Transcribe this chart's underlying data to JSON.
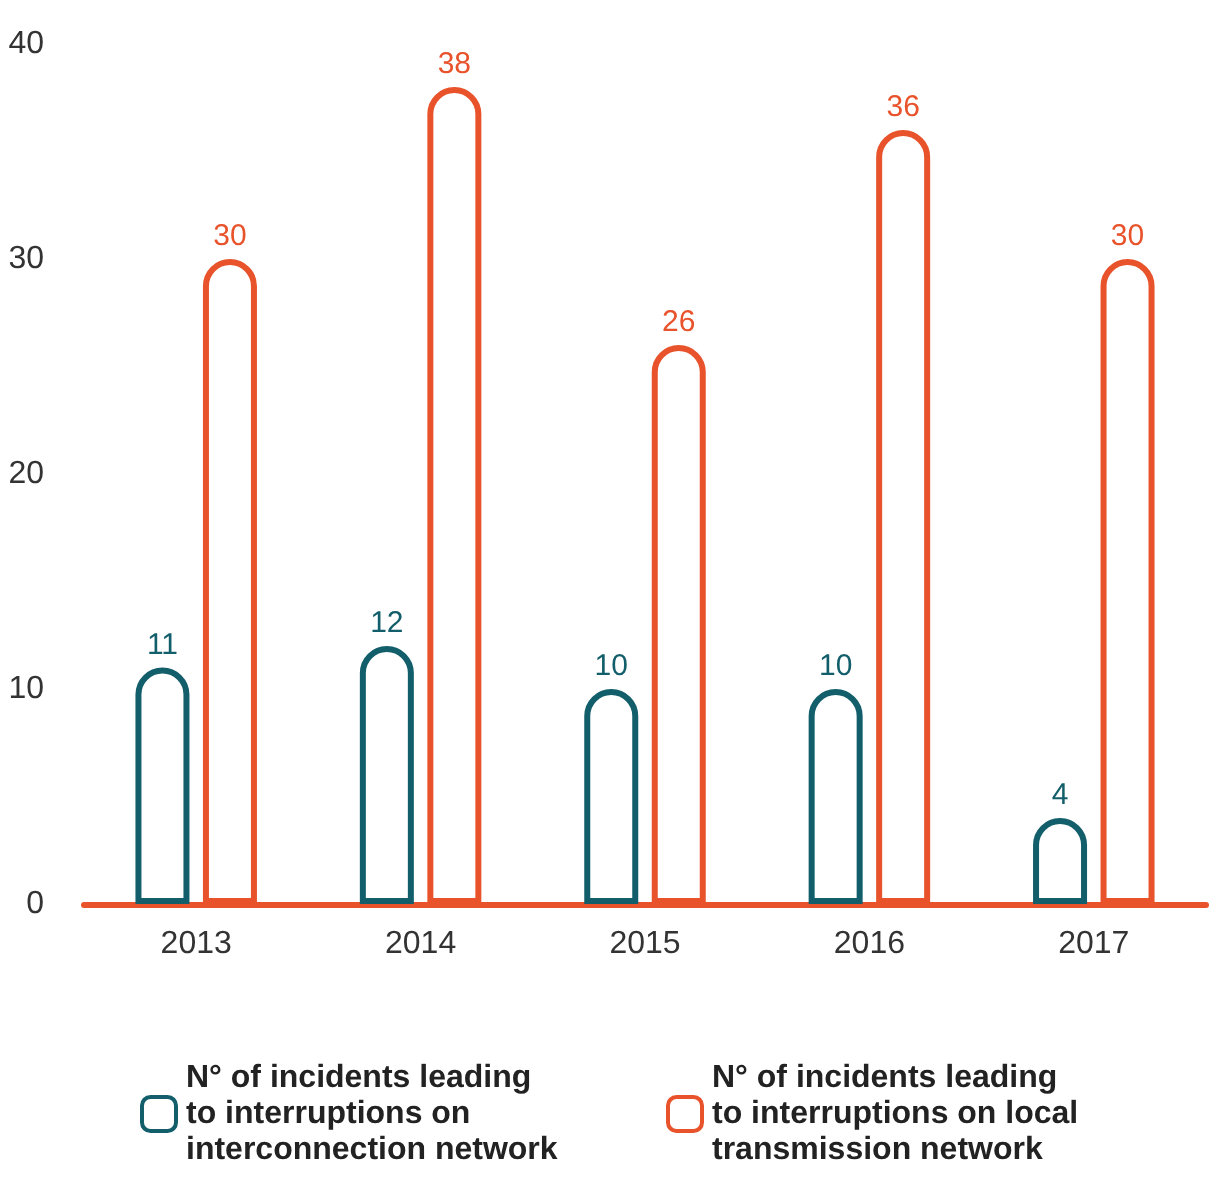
{
  "chart_data": {
    "type": "bar",
    "categories": [
      "2013",
      "2014",
      "2015",
      "2016",
      "2017"
    ],
    "series": [
      {
        "name": "N° of incidents leading to interruptions on interconnection network",
        "color": "#135e6b",
        "values": [
          11,
          12,
          10,
          10,
          4
        ]
      },
      {
        "name": "N° of incidents leading to interruptions on local transmission network",
        "color": "#e8532b",
        "values": [
          30,
          38,
          26,
          36,
          30
        ]
      }
    ],
    "ylim": [
      0,
      40
    ],
    "yticks": [
      0,
      10,
      20,
      30,
      40
    ],
    "grid": false,
    "legend": "bottom",
    "data_labels": true
  }
}
